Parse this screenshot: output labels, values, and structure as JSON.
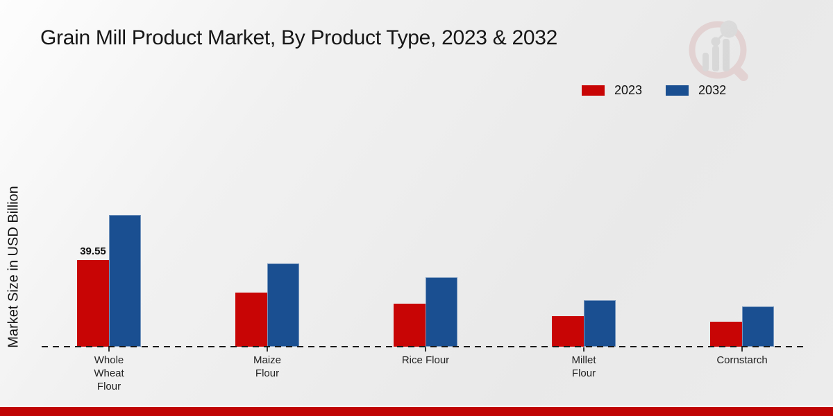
{
  "chart_data": {
    "type": "bar",
    "title": "Grain Mill Product Market, By Product Type, 2023 & 2032",
    "xlabel": "",
    "ylabel": "Market Size in USD Billion",
    "categories": [
      "Whole\nWheat\nFlour",
      "Maize\nFlour",
      "Rice Flour",
      "Millet\nFlour",
      "Cornstarch"
    ],
    "series": [
      {
        "name": "2023",
        "color": "#c80505",
        "values": [
          39.55,
          24.7,
          19.6,
          13.9,
          11.4
        ],
        "labels": [
          "39.55",
          "",
          "",
          "",
          ""
        ]
      },
      {
        "name": "2032",
        "color": "#1a4f91",
        "values": [
          59.8,
          38.0,
          31.6,
          21.2,
          18.4
        ],
        "labels": [
          "",
          "",
          "",
          "",
          ""
        ]
      }
    ],
    "ylim": [
      0,
      63
    ],
    "grid": false,
    "legend_position": "top-right",
    "baseline_style": "dashed-black"
  },
  "branding": {
    "watermark_icon": "magnifier-bar-chart-logo",
    "accent_bar_color": "#c00404",
    "background_color": "#ececec"
  }
}
